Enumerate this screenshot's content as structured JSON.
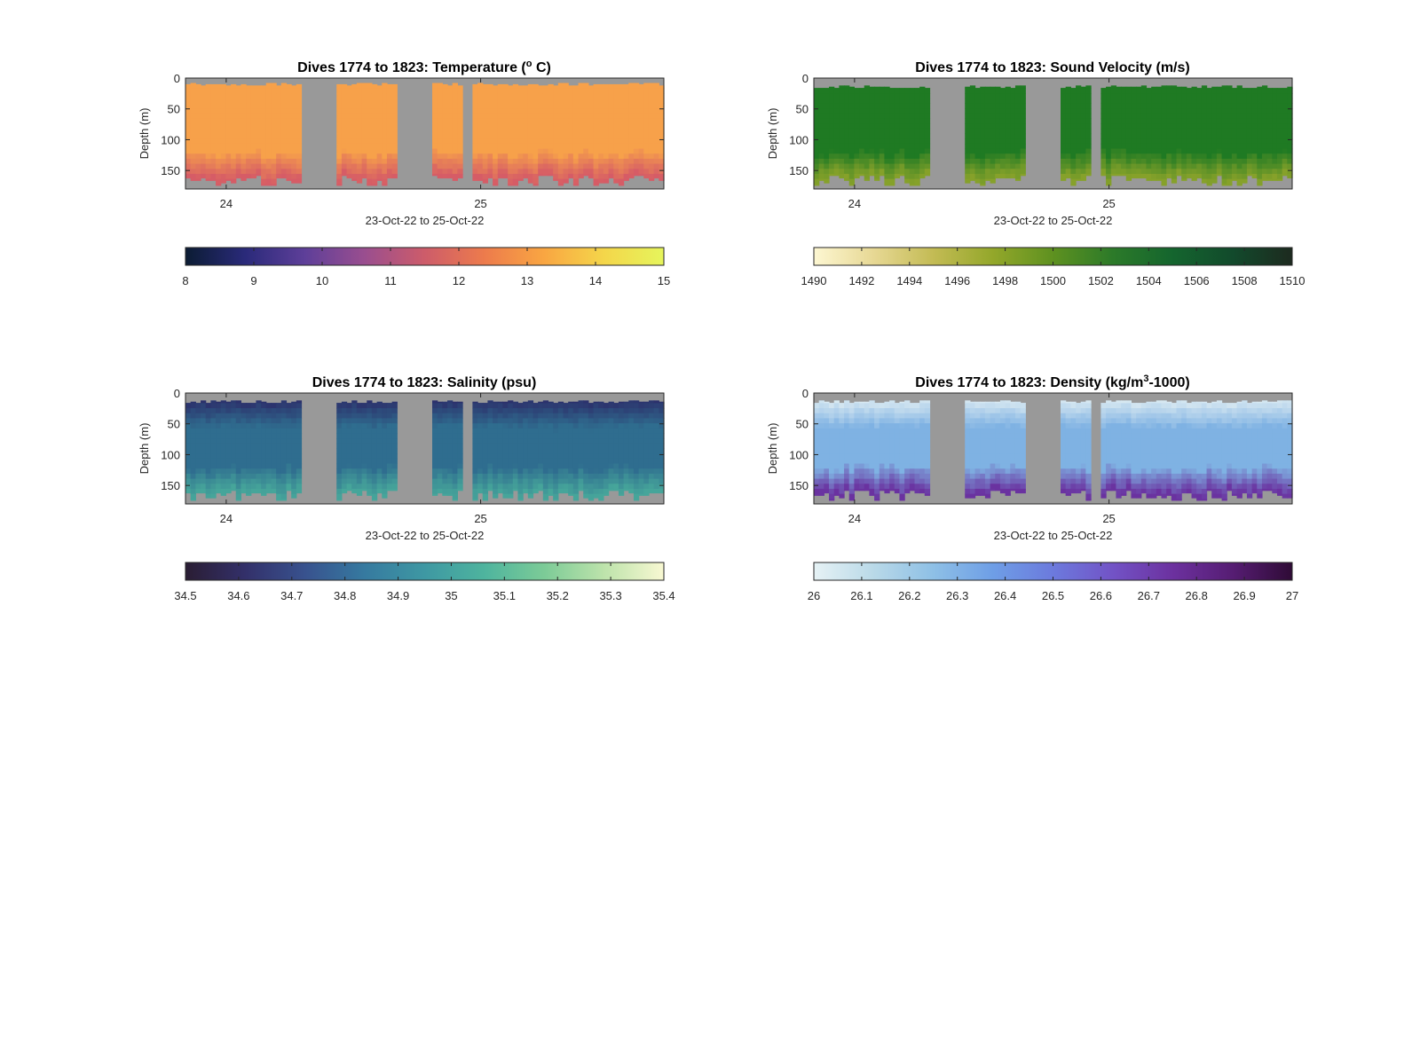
{
  "colors": {
    "gap": "#999999",
    "temperature_field": "#f7a14a",
    "temperature_deep": "#d65c66",
    "velocity_field": "#1f7a23",
    "velocity_deep": "#86a12a",
    "salinity_field": "#2f6d8f",
    "salinity_shallow": "#2c2e6a",
    "salinity_deep": "#46a59a",
    "density_field": "#7fb2e3",
    "density_shallow": "#dcebf2",
    "density_deep": "#6a32a0"
  },
  "chart_data": [
    {
      "type": "heatmap",
      "name": "temperature",
      "title": "Dives 1774 to 1823: Temperature (° C)",
      "title_parts": {
        "before": "Dives 1774 to 1823: Temperature (",
        "superscript": "o",
        "after": " C)"
      },
      "xlabel": "23-Oct-22 to 25-Oct-22",
      "ylabel": "Depth (m)",
      "xlim": [
        23.84,
        25.72
      ],
      "ylim": [
        0,
        180
      ],
      "y_reversed": true,
      "xticks": [
        24,
        25
      ],
      "xtick_labels": [
        "24",
        "25"
      ],
      "yticks": [
        0,
        50,
        100,
        150
      ],
      "ytick_labels": [
        "0",
        "50",
        "100",
        "150"
      ],
      "data_gaps": [
        [
          24.29,
          24.44
        ],
        [
          24.67,
          24.81
        ],
        [
          24.92,
          24.96
        ]
      ],
      "surface_depth_m": 8,
      "bottom_depth_m": 172,
      "colorbar": {
        "limits": [
          8,
          15
        ],
        "ticks": [
          8,
          9,
          10,
          11,
          12,
          13,
          14,
          15
        ],
        "tick_labels": [
          "8",
          "9",
          "10",
          "11",
          "12",
          "13",
          "14",
          "15"
        ],
        "colormap": [
          "#0b1c33",
          "#2a2a7a",
          "#5e3f99",
          "#9a4e8f",
          "#cd5c6a",
          "#ed7b4c",
          "#f9a642",
          "#f4d64a",
          "#e6f55c"
        ]
      }
    },
    {
      "type": "heatmap",
      "name": "sound-velocity",
      "title": "Dives 1774 to 1823: Sound Velocity (m/s)",
      "xlabel": "23-Oct-22 to 25-Oct-22",
      "ylabel": "Depth (m)",
      "xlim": [
        23.84,
        25.72
      ],
      "ylim": [
        0,
        180
      ],
      "y_reversed": true,
      "xticks": [
        24,
        25
      ],
      "xtick_labels": [
        "24",
        "25"
      ],
      "yticks": [
        0,
        50,
        100,
        150
      ],
      "ytick_labels": [
        "0",
        "50",
        "100",
        "150"
      ],
      "data_gaps": [
        [
          24.29,
          24.44
        ],
        [
          24.67,
          24.81
        ],
        [
          24.92,
          24.96
        ]
      ],
      "surface_depth_m": 12,
      "bottom_depth_m": 172,
      "colorbar": {
        "limits": [
          1490,
          1510
        ],
        "ticks": [
          1490,
          1492,
          1494,
          1496,
          1498,
          1500,
          1502,
          1504,
          1506,
          1508,
          1510
        ],
        "tick_labels": [
          "1490",
          "1492",
          "1494",
          "1496",
          "1498",
          "1500",
          "1502",
          "1504",
          "1506",
          "1508",
          "1510"
        ],
        "colormap": [
          "#fdf7d2",
          "#e7d894",
          "#c3bb54",
          "#93a72a",
          "#5e9120",
          "#2c7a29",
          "#14652e",
          "#124a2c",
          "#1d2a1f"
        ]
      }
    },
    {
      "type": "heatmap",
      "name": "salinity",
      "title": "Dives 1774 to 1823: Salinity (psu)",
      "xlabel": "23-Oct-22 to 25-Oct-22",
      "ylabel": "Depth (m)",
      "xlim": [
        23.84,
        25.72
      ],
      "ylim": [
        0,
        180
      ],
      "y_reversed": true,
      "xticks": [
        24,
        25
      ],
      "xtick_labels": [
        "24",
        "25"
      ],
      "yticks": [
        0,
        50,
        100,
        150
      ],
      "ytick_labels": [
        "0",
        "50",
        "100",
        "150"
      ],
      "data_gaps": [
        [
          24.29,
          24.44
        ],
        [
          24.67,
          24.81
        ],
        [
          24.92,
          24.96
        ]
      ],
      "surface_depth_m": 12,
      "bottom_depth_m": 172,
      "colorbar": {
        "limits": [
          34.5,
          35.4
        ],
        "ticks": [
          34.5,
          34.6,
          34.7,
          34.8,
          34.9,
          35,
          35.1,
          35.2,
          35.3,
          35.4
        ],
        "tick_labels": [
          "34.5",
          "34.6",
          "34.7",
          "34.8",
          "34.9",
          "35",
          "35.1",
          "35.2",
          "35.3",
          "35.4"
        ],
        "colormap": [
          "#2a1d33",
          "#33306a",
          "#38528e",
          "#367aa0",
          "#3e98a3",
          "#4eb49e",
          "#7ccb97",
          "#bde3ab",
          "#f8f8d2"
        ]
      }
    },
    {
      "type": "heatmap",
      "name": "density",
      "title": "Dives 1774 to 1823: Density (kg/m³-1000)",
      "title_parts": {
        "before": "Dives 1774 to 1823: Density (kg/m",
        "superscript": "3",
        "after": "-1000)"
      },
      "xlabel": "23-Oct-22 to 25-Oct-22",
      "ylabel": "Depth (m)",
      "xlim": [
        23.84,
        25.72
      ],
      "ylim": [
        0,
        180
      ],
      "y_reversed": true,
      "xticks": [
        24,
        25
      ],
      "xtick_labels": [
        "24",
        "25"
      ],
      "yticks": [
        0,
        50,
        100,
        150
      ],
      "ytick_labels": [
        "0",
        "50",
        "100",
        "150"
      ],
      "data_gaps": [
        [
          24.29,
          24.44
        ],
        [
          24.67,
          24.81
        ],
        [
          24.92,
          24.96
        ]
      ],
      "surface_depth_m": 12,
      "bottom_depth_m": 172,
      "colorbar": {
        "limits": [
          26,
          27
        ],
        "ticks": [
          26,
          26.1,
          26.2,
          26.3,
          26.4,
          26.5,
          26.6,
          26.7,
          26.8,
          26.9,
          27
        ],
        "tick_labels": [
          "26",
          "26.1",
          "26.2",
          "26.3",
          "26.4",
          "26.5",
          "26.6",
          "26.7",
          "26.8",
          "26.9",
          "27"
        ],
        "colormap": [
          "#e6f2f5",
          "#b9d9e8",
          "#8ec0e6",
          "#6e9ee6",
          "#6c7add",
          "#7253c6",
          "#6c319f",
          "#561d73",
          "#2f0b36"
        ]
      }
    }
  ]
}
